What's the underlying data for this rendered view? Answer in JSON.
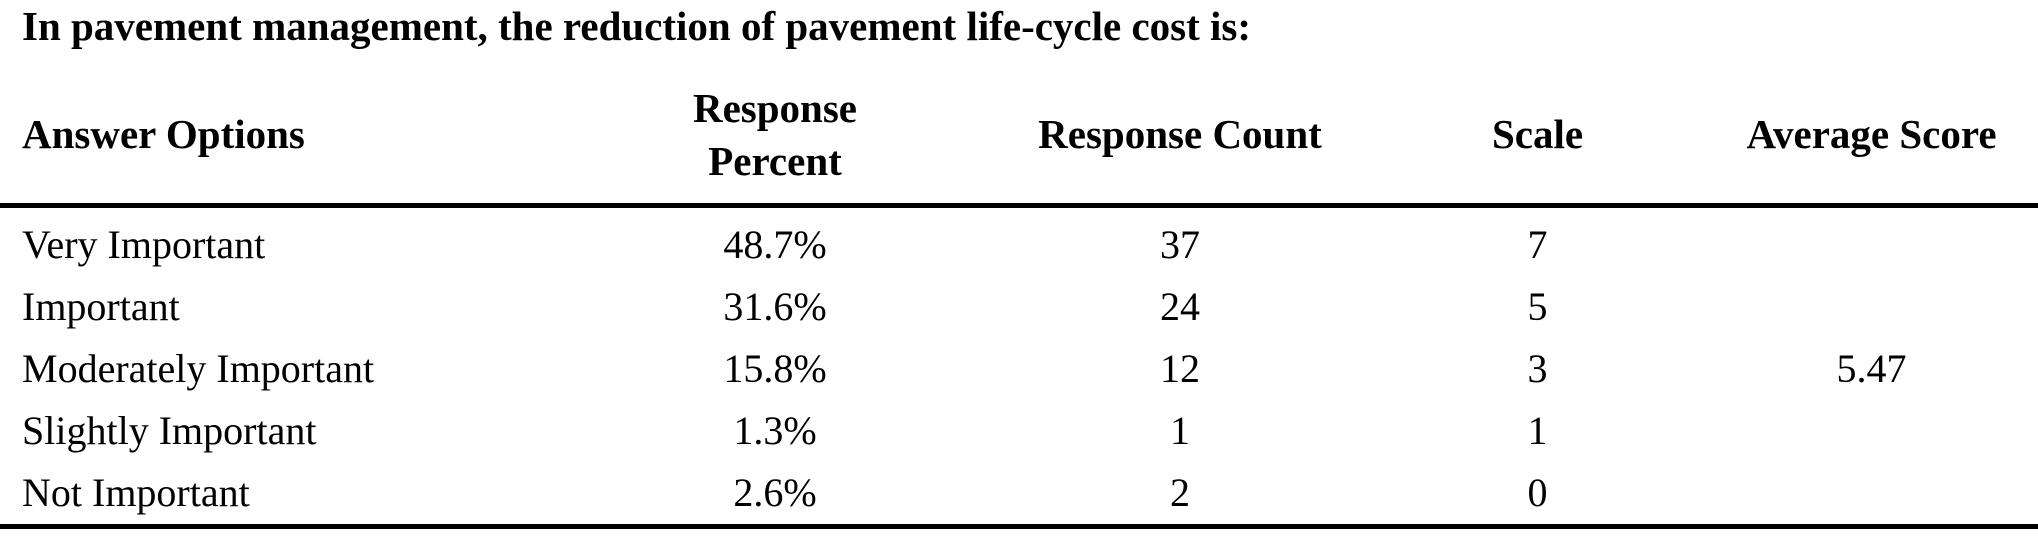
{
  "title": "In pavement management, the reduction of pavement life-cycle cost is:",
  "table": {
    "headers": {
      "answer_options": "Answer Options",
      "response_percent": "Response Percent",
      "response_count": "Response Count",
      "scale": "Scale",
      "average_score": "Average Score"
    },
    "rows": [
      {
        "option": "Very Important",
        "percent": "48.7%",
        "count": "37",
        "scale": "7",
        "avg": ""
      },
      {
        "option": "Important",
        "percent": "31.6%",
        "count": "24",
        "scale": "5",
        "avg": ""
      },
      {
        "option": "Moderately Important",
        "percent": "15.8%",
        "count": "12",
        "scale": "3",
        "avg": "5.47"
      },
      {
        "option": "Slightly Important",
        "percent": "1.3%",
        "count": "1",
        "scale": "1",
        "avg": ""
      },
      {
        "option": "Not Important",
        "percent": "2.6%",
        "count": "2",
        "scale": "0",
        "avg": ""
      }
    ],
    "average_score": "5.47"
  },
  "chart_data": {
    "type": "table",
    "title": "In pavement management, the reduction of pavement life-cycle cost is:",
    "columns": [
      "Answer Options",
      "Response Percent",
      "Response Count",
      "Scale",
      "Average Score"
    ],
    "rows": [
      [
        "Very Important",
        "48.7%",
        37,
        7,
        null
      ],
      [
        "Important",
        "31.6%",
        24,
        5,
        null
      ],
      [
        "Moderately Important",
        "15.8%",
        12,
        3,
        5.47
      ],
      [
        "Slightly Important",
        "1.3%",
        1,
        1,
        null
      ],
      [
        "Not Important",
        "2.6%",
        2,
        0,
        null
      ]
    ],
    "average_score": 5.47
  }
}
